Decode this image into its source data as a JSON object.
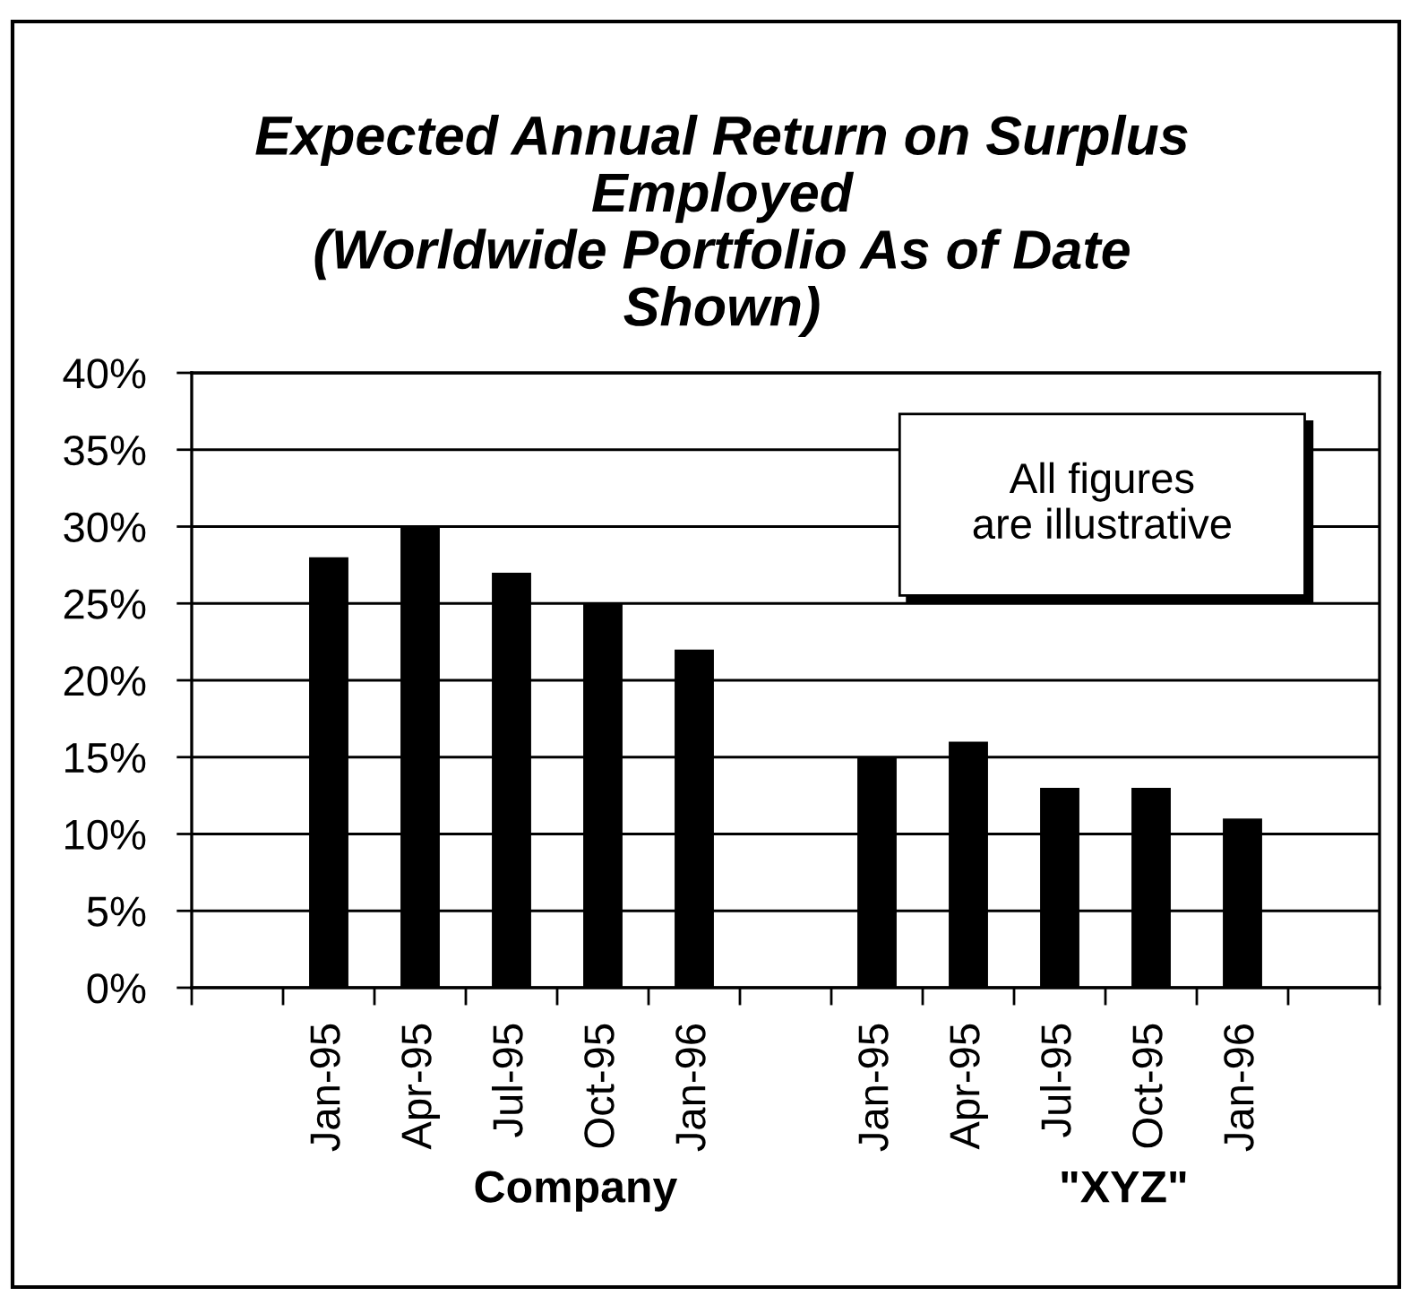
{
  "chart_data": {
    "type": "bar",
    "title": "Expected Annual Return on Surplus\nEmployed\n(Worldwide Portfolio As of Date\nShown)",
    "categories": [
      null,
      "Jan-95",
      "Apr-95",
      "Jul-95",
      "Oct-95",
      "Jan-96",
      null,
      "Jan-95",
      "Apr-95",
      "Jul-95",
      "Oct-95",
      "Jan-96",
      null
    ],
    "values": [
      null,
      28,
      30,
      27,
      25,
      22,
      null,
      15,
      16,
      13,
      13,
      11,
      null
    ],
    "color": "#000000",
    "ylim": [
      0,
      40
    ],
    "yticks": [
      {
        "value": 0,
        "label": "0%"
      },
      {
        "value": 5,
        "label": "5%"
      },
      {
        "value": 10,
        "label": "10%"
      },
      {
        "value": 15,
        "label": "15%"
      },
      {
        "value": 20,
        "label": "20%"
      },
      {
        "value": 25,
        "label": "25%"
      },
      {
        "value": 30,
        "label": "30%"
      },
      {
        "value": 35,
        "label": "35%"
      },
      {
        "value": 40,
        "label": "40%"
      }
    ],
    "grid": "y",
    "annotations": [
      "Company",
      "\"XYZ\"",
      "All figures\nare illustrative"
    ]
  }
}
